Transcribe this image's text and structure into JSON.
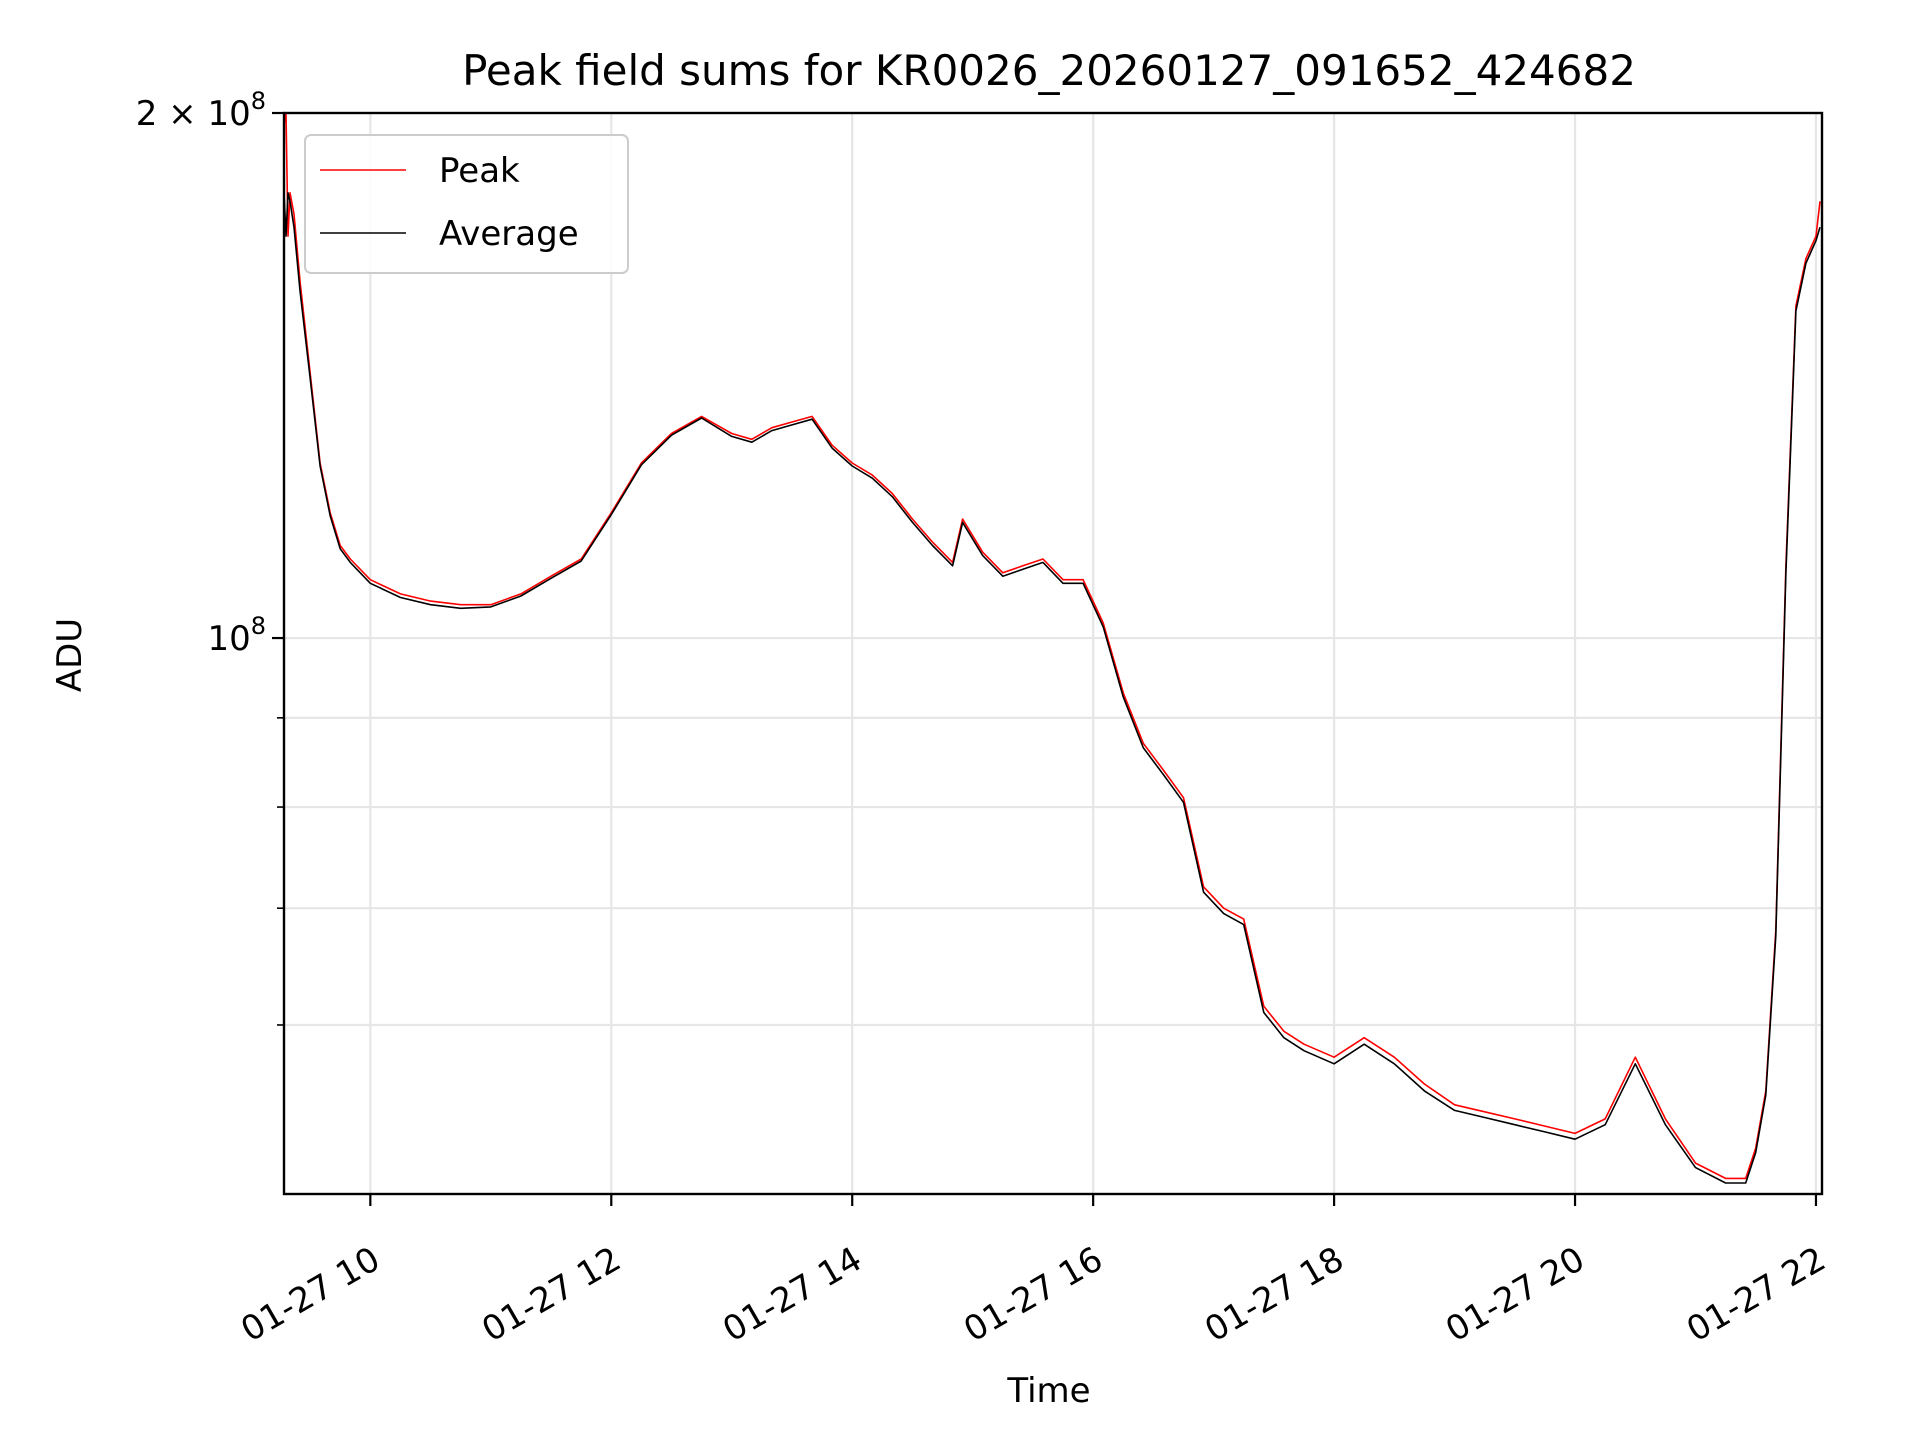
{
  "chart_data": {
    "type": "line",
    "title": "Peak field sums for KR0026_20260127_091652_424682",
    "xlabel": "Time",
    "ylabel": "ADU",
    "y_scale": "log",
    "ylim": [
      48000000,
      200000000
    ],
    "xlim": [
      "2026-01-27 09:17",
      "2026-01-27 22:03"
    ],
    "x_ticks": [
      {
        "value": "2026-01-27 10:00",
        "label": "01-27 10"
      },
      {
        "value": "2026-01-27 12:00",
        "label": "01-27 12"
      },
      {
        "value": "2026-01-27 14:00",
        "label": "01-27 14"
      },
      {
        "value": "2026-01-27 16:00",
        "label": "01-27 16"
      },
      {
        "value": "2026-01-27 18:00",
        "label": "01-27 18"
      },
      {
        "value": "2026-01-27 20:00",
        "label": "01-27 20"
      },
      {
        "value": "2026-01-27 22:00",
        "label": "01-27 22"
      }
    ],
    "y_ticks": [
      {
        "value": 100000000,
        "base": "10",
        "exp": "8"
      },
      {
        "value": 200000000,
        "base": "2 × 10",
        "exp": "8"
      }
    ],
    "y_minor_ticks": [
      60000000,
      70000000,
      80000000,
      90000000
    ],
    "grid": true,
    "legend_position": "top-left",
    "series": [
      {
        "name": "Peak",
        "color": "#ff0000",
        "x": [
          "2026-01-27 09:17",
          "2026-01-27 09:18",
          "2026-01-27 09:19",
          "2026-01-27 09:20",
          "2026-01-27 09:22",
          "2026-01-27 09:25",
          "2026-01-27 09:30",
          "2026-01-27 09:35",
          "2026-01-27 09:40",
          "2026-01-27 09:45",
          "2026-01-27 09:50",
          "2026-01-27 10:00",
          "2026-01-27 10:15",
          "2026-01-27 10:30",
          "2026-01-27 10:45",
          "2026-01-27 11:00",
          "2026-01-27 11:15",
          "2026-01-27 11:30",
          "2026-01-27 11:45",
          "2026-01-27 12:00",
          "2026-01-27 12:15",
          "2026-01-27 12:30",
          "2026-01-27 12:45",
          "2026-01-27 13:00",
          "2026-01-27 13:10",
          "2026-01-27 13:20",
          "2026-01-27 13:30",
          "2026-01-27 13:40",
          "2026-01-27 13:50",
          "2026-01-27 14:00",
          "2026-01-27 14:10",
          "2026-01-27 14:20",
          "2026-01-27 14:30",
          "2026-01-27 14:40",
          "2026-01-27 14:50",
          "2026-01-27 14:55",
          "2026-01-27 15:05",
          "2026-01-27 15:15",
          "2026-01-27 15:25",
          "2026-01-27 15:35",
          "2026-01-27 15:45",
          "2026-01-27 15:55",
          "2026-01-27 16:05",
          "2026-01-27 16:15",
          "2026-01-27 16:25",
          "2026-01-27 16:35",
          "2026-01-27 16:45",
          "2026-01-27 16:55",
          "2026-01-27 17:05",
          "2026-01-27 17:15",
          "2026-01-27 17:25",
          "2026-01-27 17:35",
          "2026-01-27 17:45",
          "2026-01-27 18:00",
          "2026-01-27 18:15",
          "2026-01-27 18:30",
          "2026-01-27 18:45",
          "2026-01-27 19:00",
          "2026-01-27 19:15",
          "2026-01-27 19:30",
          "2026-01-27 19:45",
          "2026-01-27 20:00",
          "2026-01-27 20:15",
          "2026-01-27 20:30",
          "2026-01-27 20:45",
          "2026-01-27 21:00",
          "2026-01-27 21:15",
          "2026-01-27 21:25",
          "2026-01-27 21:30",
          "2026-01-27 21:35",
          "2026-01-27 21:40",
          "2026-01-27 21:45",
          "2026-01-27 21:50",
          "2026-01-27 21:55",
          "2026-01-27 22:00",
          "2026-01-27 22:02"
        ],
        "values": [
          197000000,
          200000000,
          170000000,
          180000000,
          175000000,
          160000000,
          142000000,
          126000000,
          118000000,
          113000000,
          111000000,
          108000000,
          106000000,
          105000000,
          104500000,
          104500000,
          106000000,
          108500000,
          111000000,
          118000000,
          126000000,
          131000000,
          134000000,
          131000000,
          130000000,
          132000000,
          133000000,
          134000000,
          129000000,
          126000000,
          124000000,
          121000000,
          117000000,
          113500000,
          110500000,
          117000000,
          112000000,
          109000000,
          110000000,
          111000000,
          108000000,
          108000000,
          102000000,
          93000000,
          87000000,
          84000000,
          81000000,
          72000000,
          70000000,
          69000000,
          61500000,
          59500000,
          58500000,
          57500000,
          59000000,
          57500000,
          55500000,
          54000000,
          53500000,
          53000000,
          52500000,
          52000000,
          53000000,
          57500000,
          53000000,
          50000000,
          49000000,
          49000000,
          51000000,
          55000000,
          68000000,
          110000000,
          155000000,
          165000000,
          170000000,
          178000000
        ]
      },
      {
        "name": "Average",
        "color": "#000000",
        "x": [
          "2026-01-27 09:17",
          "2026-01-27 09:18",
          "2026-01-27 09:19",
          "2026-01-27 09:20",
          "2026-01-27 09:22",
          "2026-01-27 09:25",
          "2026-01-27 09:30",
          "2026-01-27 09:35",
          "2026-01-27 09:40",
          "2026-01-27 09:45",
          "2026-01-27 09:50",
          "2026-01-27 10:00",
          "2026-01-27 10:15",
          "2026-01-27 10:30",
          "2026-01-27 10:45",
          "2026-01-27 11:00",
          "2026-01-27 11:15",
          "2026-01-27 11:30",
          "2026-01-27 11:45",
          "2026-01-27 12:00",
          "2026-01-27 12:15",
          "2026-01-27 12:30",
          "2026-01-27 12:45",
          "2026-01-27 13:00",
          "2026-01-27 13:10",
          "2026-01-27 13:20",
          "2026-01-27 13:30",
          "2026-01-27 13:40",
          "2026-01-27 13:50",
          "2026-01-27 14:00",
          "2026-01-27 14:10",
          "2026-01-27 14:20",
          "2026-01-27 14:30",
          "2026-01-27 14:40",
          "2026-01-27 14:50",
          "2026-01-27 14:55",
          "2026-01-27 15:05",
          "2026-01-27 15:15",
          "2026-01-27 15:25",
          "2026-01-27 15:35",
          "2026-01-27 15:45",
          "2026-01-27 15:55",
          "2026-01-27 16:05",
          "2026-01-27 16:15",
          "2026-01-27 16:25",
          "2026-01-27 16:35",
          "2026-01-27 16:45",
          "2026-01-27 16:55",
          "2026-01-27 17:05",
          "2026-01-27 17:15",
          "2026-01-27 17:25",
          "2026-01-27 17:35",
          "2026-01-27 17:45",
          "2026-01-27 18:00",
          "2026-01-27 18:15",
          "2026-01-27 18:30",
          "2026-01-27 18:45",
          "2026-01-27 19:00",
          "2026-01-27 19:15",
          "2026-01-27 19:30",
          "2026-01-27 19:45",
          "2026-01-27 20:00",
          "2026-01-27 20:15",
          "2026-01-27 20:30",
          "2026-01-27 20:45",
          "2026-01-27 21:00",
          "2026-01-27 21:15",
          "2026-01-27 21:25",
          "2026-01-27 21:30",
          "2026-01-27 21:35",
          "2026-01-27 21:40",
          "2026-01-27 21:45",
          "2026-01-27 21:50",
          "2026-01-27 21:55",
          "2026-01-27 22:00",
          "2026-01-27 22:02"
        ],
        "values": [
          180000000,
          170000000,
          180000000,
          178000000,
          172000000,
          158000000,
          141000000,
          125500000,
          117500000,
          112500000,
          110500000,
          107500000,
          105500000,
          104500000,
          104000000,
          104200000,
          105700000,
          108200000,
          110700000,
          117700000,
          125700000,
          130700000,
          133700000,
          130500000,
          129500000,
          131500000,
          132500000,
          133500000,
          128500000,
          125500000,
          123500000,
          120500000,
          116500000,
          113000000,
          110000000,
          116500000,
          111500000,
          108500000,
          109500000,
          110500000,
          107500000,
          107500000,
          101500000,
          92500000,
          86500000,
          83500000,
          80500000,
          71500000,
          69500000,
          68500000,
          61000000,
          59000000,
          58000000,
          57000000,
          58500000,
          57000000,
          55000000,
          53600000,
          53100000,
          52600000,
          52100000,
          51600000,
          52600000,
          57000000,
          52600000,
          49700000,
          48700000,
          48700000,
          50700000,
          54700000,
          67500000,
          109000000,
          154000000,
          164000000,
          169000000,
          172000000
        ]
      }
    ]
  }
}
